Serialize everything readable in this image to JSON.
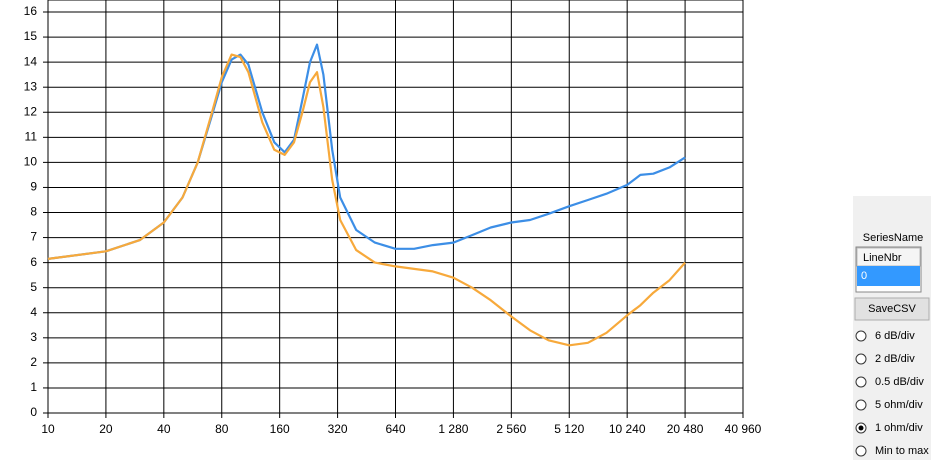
{
  "chart_data": {
    "type": "line",
    "xscale": "log",
    "x": [
      10,
      20,
      30,
      40,
      50,
      60,
      70,
      80,
      90,
      100,
      110,
      130,
      150,
      170,
      190,
      210,
      230,
      250,
      270,
      300,
      330,
      400,
      500,
      640,
      800,
      1000,
      1280,
      1600,
      2000,
      2560,
      3200,
      4000,
      5120,
      6400,
      8000,
      10240,
      12000,
      14000,
      17000,
      20480
    ],
    "series": [
      {
        "color": "#3c8ee6",
        "values": [
          6.15,
          6.45,
          6.9,
          7.6,
          8.6,
          10.0,
          11.7,
          13.2,
          14.1,
          14.3,
          13.9,
          12.0,
          10.8,
          10.4,
          10.9,
          12.5,
          14.0,
          14.7,
          13.5,
          10.5,
          8.6,
          7.3,
          6.8,
          6.55,
          6.55,
          6.7,
          6.8,
          7.1,
          7.4,
          7.6,
          7.7,
          7.95,
          8.25,
          8.5,
          8.75,
          9.1,
          9.5,
          9.55,
          9.8,
          10.2
        ]
      },
      {
        "color": "#f7a93b",
        "values": [
          6.15,
          6.45,
          6.9,
          7.6,
          8.6,
          10.0,
          11.8,
          13.4,
          14.3,
          14.2,
          13.6,
          11.6,
          10.5,
          10.3,
          10.8,
          12.0,
          13.2,
          13.6,
          12.2,
          9.3,
          7.7,
          6.5,
          6.0,
          5.85,
          5.75,
          5.65,
          5.4,
          5.0,
          4.5,
          3.85,
          3.3,
          2.9,
          2.7,
          2.8,
          3.2,
          3.9,
          4.3,
          4.8,
          5.3,
          6.0
        ]
      }
    ],
    "xlim": [
      10,
      40960
    ],
    "xticks": [
      10,
      20,
      40,
      80,
      160,
      320,
      640,
      {
        "value": 1280,
        "label": "1 280"
      },
      {
        "value": 2560,
        "label": "2 560"
      },
      {
        "value": 5120,
        "label": "5 120"
      },
      {
        "value": 10240,
        "label": "10 240"
      },
      {
        "value": 20480,
        "label": "20 480"
      },
      {
        "value": 40960,
        "label": "40 960"
      }
    ],
    "ylim": [
      0,
      16
    ],
    "yticks": [
      0,
      1,
      2,
      3,
      4,
      5,
      6,
      7,
      8,
      9,
      10,
      11,
      12,
      13,
      14,
      15,
      16
    ],
    "grid": true
  },
  "panel": {
    "title": "SeriesName",
    "table_header": "LineNbr",
    "table_cell": "0",
    "button": "SaveCSV",
    "options": [
      {
        "label": "6 dB/div",
        "checked": false
      },
      {
        "label": "2 dB/div",
        "checked": false
      },
      {
        "label": "0.5 dB/div",
        "checked": false
      },
      {
        "label": "5 ohm/div",
        "checked": false
      },
      {
        "label": "1 ohm/div",
        "checked": true
      },
      {
        "label": "Min to max",
        "checked": false
      }
    ]
  }
}
